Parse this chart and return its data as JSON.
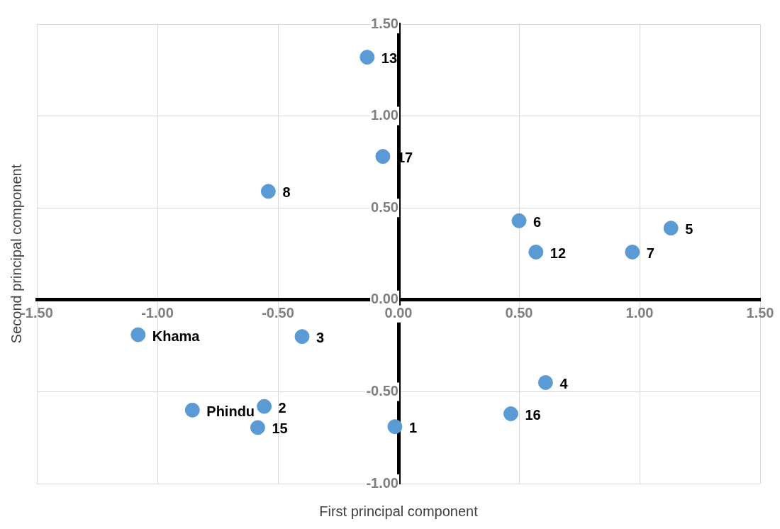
{
  "chart_data": {
    "type": "scatter",
    "xlabel": "First principal component",
    "ylabel": "Second principal component",
    "x": [
      -0.13,
      -0.065,
      -0.54,
      0.5,
      1.13,
      0.57,
      0.97,
      -1.08,
      -0.4,
      0.61,
      -0.855,
      -0.557,
      -0.584,
      -0.015,
      0.466
    ],
    "series": [
      {
        "color": "#5b9bd5",
        "values": [
          1.32,
          0.78,
          0.59,
          0.43,
          0.39,
          0.26,
          0.26,
          -0.19,
          -0.2,
          -0.45,
          -0.6,
          -0.58,
          -0.695,
          -0.69,
          -0.62
        ]
      }
    ],
    "annotations": [
      {
        "text": "13",
        "x": -0.13,
        "y": 1.32
      },
      {
        "text": "17",
        "x": -0.065,
        "y": 0.78
      },
      {
        "text": "8",
        "x": -0.54,
        "y": 0.59
      },
      {
        "text": "6",
        "x": 0.5,
        "y": 0.43
      },
      {
        "text": "5",
        "x": 1.13,
        "y": 0.39
      },
      {
        "text": "12",
        "x": 0.57,
        "y": 0.26
      },
      {
        "text": "7",
        "x": 0.97,
        "y": 0.26
      },
      {
        "text": "Khama",
        "x": -1.08,
        "y": -0.19
      },
      {
        "text": "3",
        "x": -0.4,
        "y": -0.2
      },
      {
        "text": "4",
        "x": 0.61,
        "y": -0.45
      },
      {
        "text": "Phindu",
        "x": -0.855,
        "y": -0.6
      },
      {
        "text": "2",
        "x": -0.557,
        "y": -0.58
      },
      {
        "text": "15",
        "x": -0.584,
        "y": -0.695
      },
      {
        "text": "1",
        "x": -0.015,
        "y": -0.69
      },
      {
        "text": "16",
        "x": 0.466,
        "y": -0.62
      }
    ],
    "xlim": [
      -1.5,
      1.5
    ],
    "ylim": [
      -1,
      1.5
    ],
    "xticks": [
      {
        "value": -1.5,
        "label": "-1.50"
      },
      {
        "value": -1,
        "label": "-1.00"
      },
      {
        "value": -0.5,
        "label": "-0.50"
      },
      {
        "value": 0,
        "label": "0.00"
      },
      {
        "value": 0.5,
        "label": "0.50"
      },
      {
        "value": 1,
        "label": "1.00"
      },
      {
        "value": 1.5,
        "label": "1.50"
      }
    ],
    "yticks": [
      {
        "value": -1,
        "label": "-1.00"
      },
      {
        "value": -0.5,
        "label": "-0.50"
      },
      {
        "value": 0,
        "label": "0.00"
      },
      {
        "value": 0.5,
        "label": "0.50"
      },
      {
        "value": 1,
        "label": "1.00"
      },
      {
        "value": 1.5,
        "label": "1.50"
      }
    ],
    "grid": true,
    "legend": false,
    "marker": "circle"
  }
}
